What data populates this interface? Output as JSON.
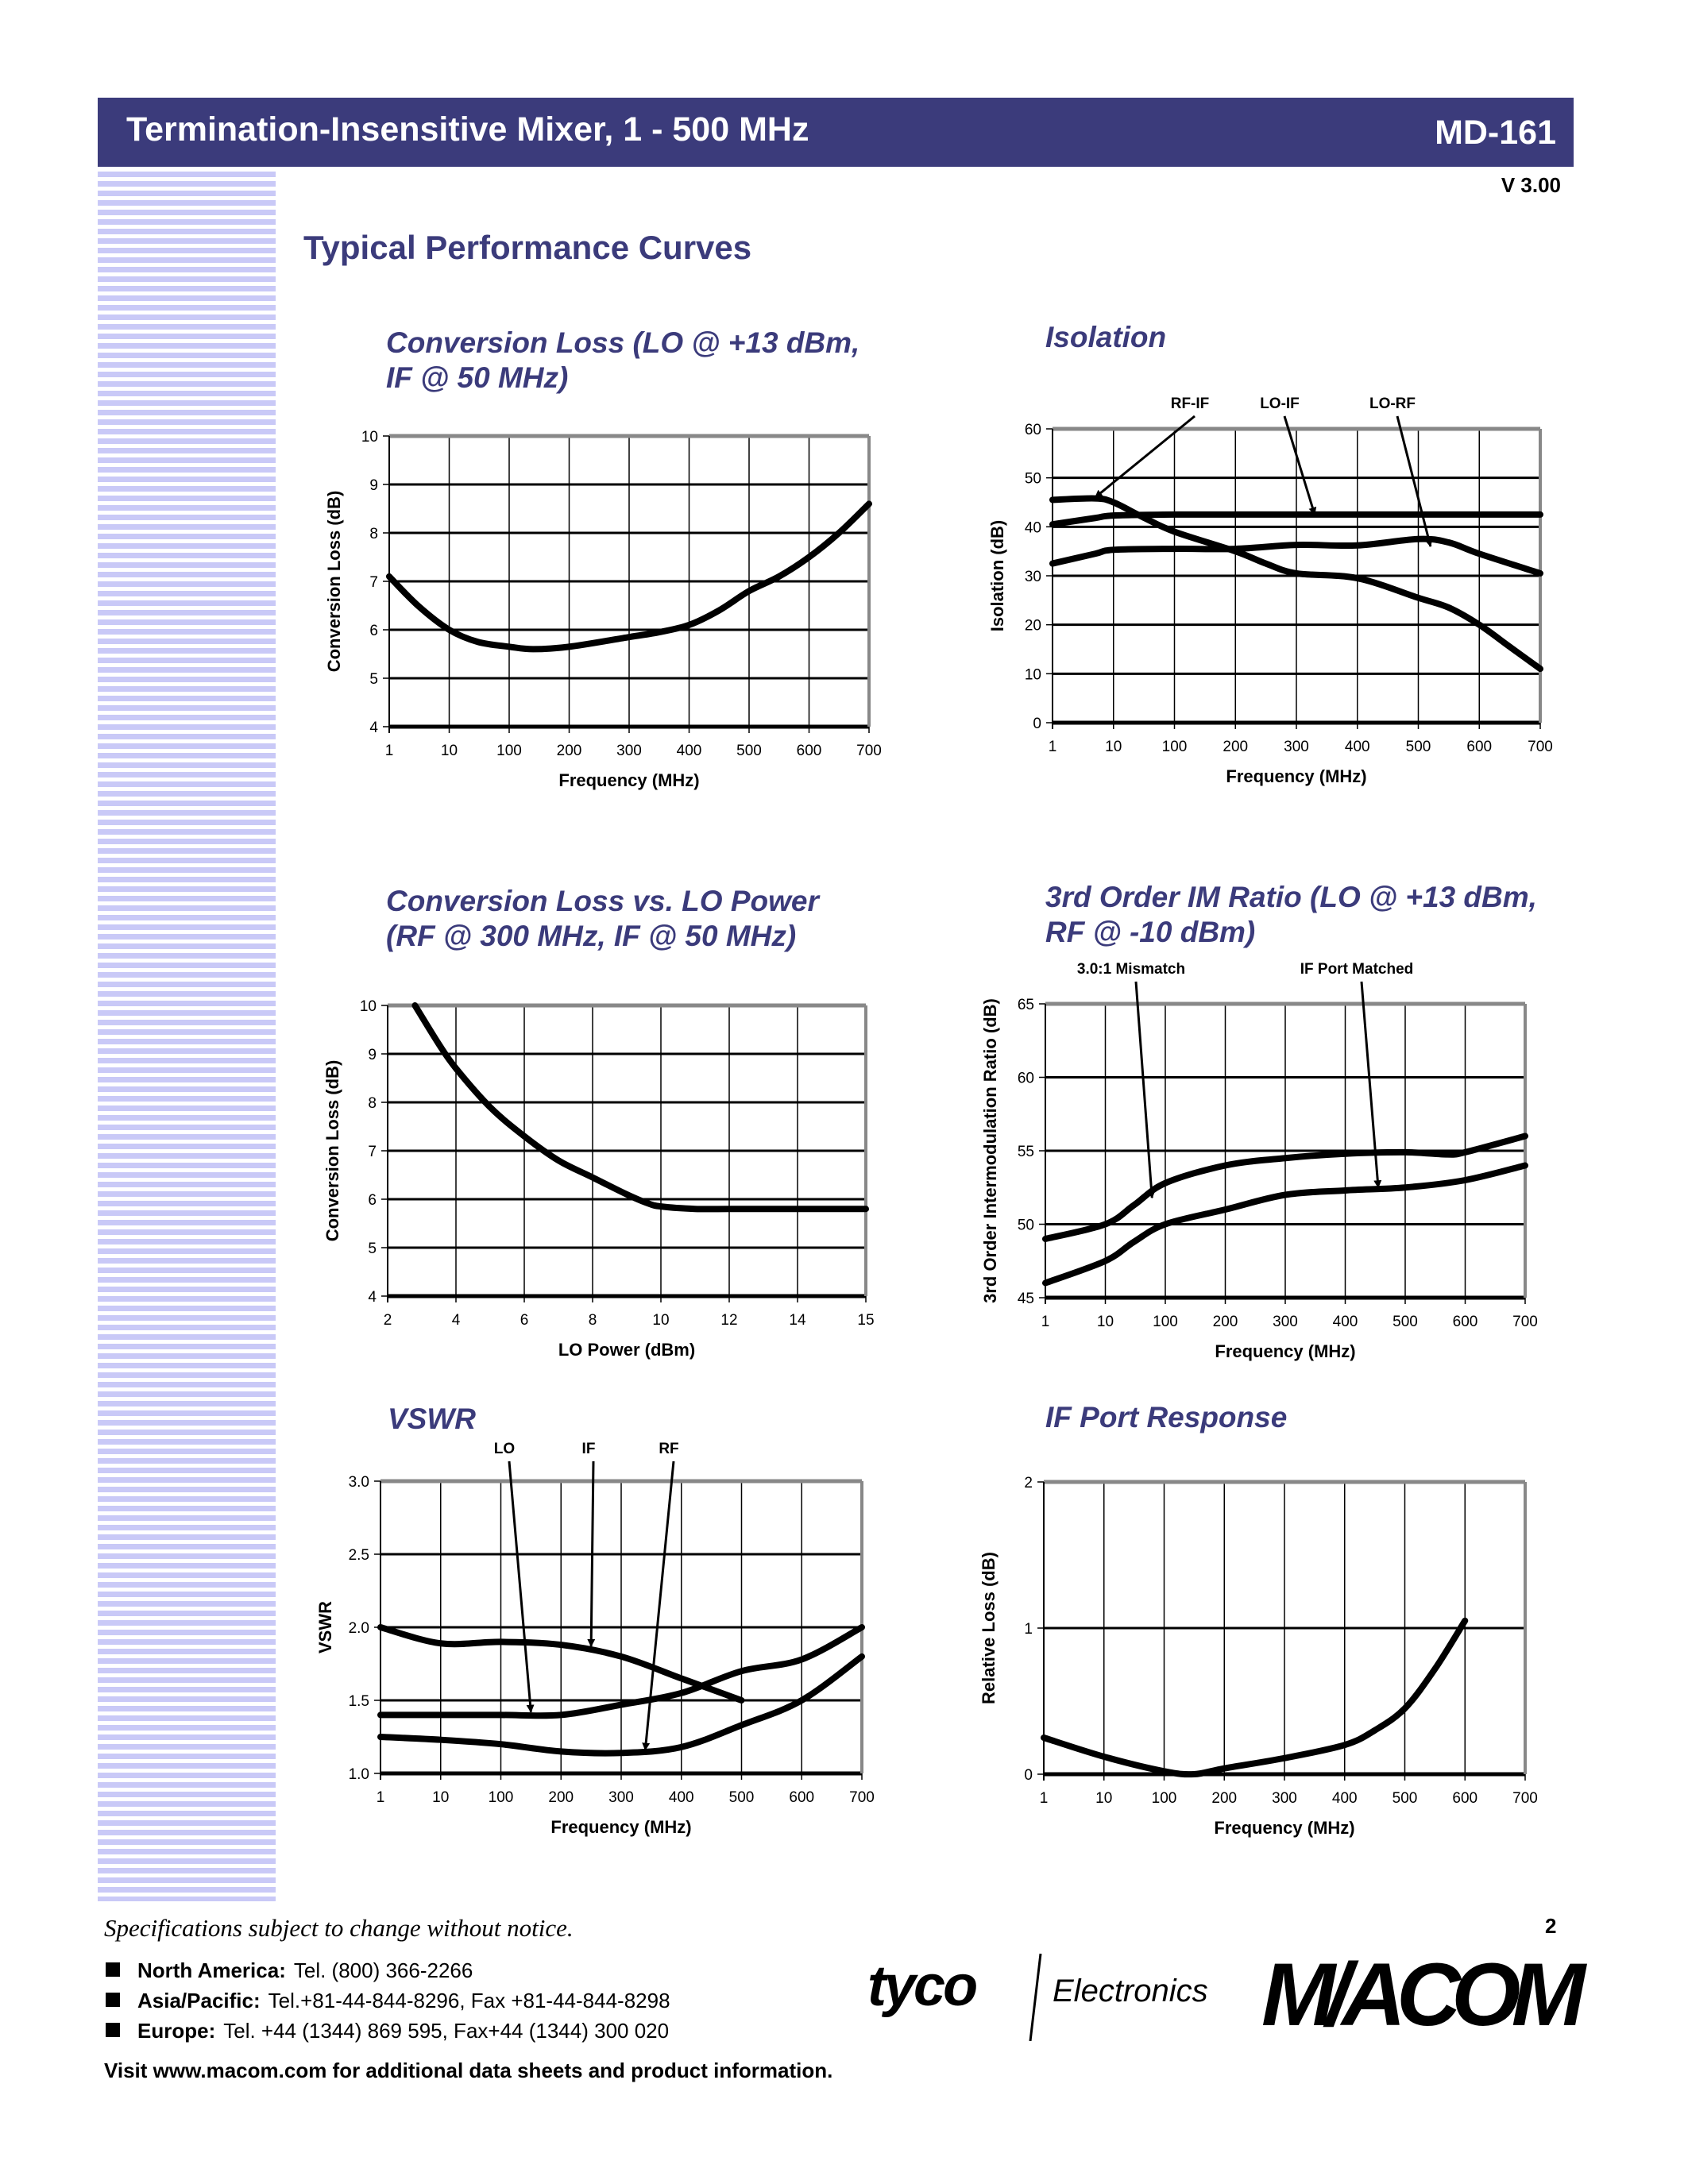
{
  "header": {
    "title": "Termination-Insensitive Mixer, 1 - 500 MHz",
    "part_number": "MD-161",
    "version": "V 3.00",
    "accent_color": "#3b3b7b"
  },
  "section_title": "Typical Performance Curves",
  "chart_titles": [
    [
      "Conversion Loss (LO @ +13 dBm,",
      "IF @ 50 MHz)"
    ],
    [
      "Isolation"
    ],
    [
      "Conversion Loss vs. LO Power",
      "(RF @ 300 MHz, IF @ 50 MHz)"
    ],
    [
      "3rd Order IM Ratio (LO @ +13 dBm,",
      "RF @ -10 dBm)"
    ],
    [
      "VSWR"
    ],
    [
      "IF Port Response"
    ]
  ],
  "chart_data": [
    {
      "type": "line",
      "xlabel": "Frequency (MHz)",
      "ylabel": "Conversion Loss (dB)",
      "x_ticks": [
        "1",
        "10",
        "100",
        "200",
        "300",
        "400",
        "500",
        "600",
        "700"
      ],
      "y_ticks": [
        "4",
        "5",
        "6",
        "7",
        "8",
        "9",
        "10"
      ],
      "ylim": [
        4,
        10
      ],
      "grid": true,
      "series": [
        {
          "points": [
            [
              1,
              7.1
            ],
            [
              3,
              6.5
            ],
            [
              10,
              6.0
            ],
            [
              30,
              5.75
            ],
            [
              100,
              5.65
            ],
            [
              140,
              5.6
            ],
            [
              200,
              5.65
            ],
            [
              300,
              5.85
            ],
            [
              350,
              5.95
            ],
            [
              400,
              6.1
            ],
            [
              450,
              6.4
            ],
            [
              500,
              6.8
            ],
            [
              550,
              7.1
            ],
            [
              600,
              7.5
            ],
            [
              650,
              8.0
            ],
            [
              700,
              8.6
            ]
          ]
        }
      ],
      "annotations": []
    },
    {
      "type": "line",
      "xlabel": "Frequency (MHz)",
      "ylabel": "Isolation (dB)",
      "x_ticks": [
        "1",
        "10",
        "100",
        "200",
        "300",
        "400",
        "500",
        "600",
        "700"
      ],
      "y_ticks": [
        "0",
        "10",
        "20",
        "30",
        "40",
        "50",
        "60"
      ],
      "ylim": [
        0,
        60
      ],
      "grid": true,
      "series": [
        {
          "name": "RF-IF",
          "points": [
            [
              1,
              45.5
            ],
            [
              5,
              45.8
            ],
            [
              10,
              45
            ],
            [
              30,
              42
            ],
            [
              100,
              39
            ],
            [
              200,
              35
            ],
            [
              250,
              32.5
            ],
            [
              300,
              30.5
            ],
            [
              400,
              29.5
            ],
            [
              500,
              25.5
            ],
            [
              550,
              23.5
            ],
            [
              600,
              20
            ],
            [
              650,
              15.5
            ],
            [
              700,
              11
            ]
          ]
        },
        {
          "name": "LO-IF",
          "points": [
            [
              1,
              40.5
            ],
            [
              5,
              41.8
            ],
            [
              10,
              42.3
            ],
            [
              100,
              42.5
            ],
            [
              200,
              42.5
            ],
            [
              400,
              42.5
            ],
            [
              700,
              42.5
            ]
          ]
        },
        {
          "name": "LO-RF",
          "points": [
            [
              1,
              32.5
            ],
            [
              5,
              34.5
            ],
            [
              10,
              35.3
            ],
            [
              100,
              35.5
            ],
            [
              200,
              35.5
            ],
            [
              300,
              36.3
            ],
            [
              400,
              36.2
            ],
            [
              500,
              37.5
            ],
            [
              550,
              36.8
            ],
            [
              600,
              34.5
            ],
            [
              700,
              30.5
            ]
          ]
        }
      ],
      "annotations": [
        {
          "label": "RF-IF",
          "target": [
            5,
            46
          ]
        },
        {
          "label": "LO-IF",
          "target": [
            330,
            42.5
          ]
        },
        {
          "label": "LO-RF",
          "target": [
            520,
            36
          ]
        }
      ]
    },
    {
      "type": "line",
      "xlabel": "LO Power (dBm)",
      "ylabel": "Conversion Loss (dB)",
      "x_ticks": [
        "2",
        "4",
        "6",
        "8",
        "10",
        "12",
        "14",
        "15"
      ],
      "y_ticks": [
        "4",
        "5",
        "6",
        "7",
        "8",
        "9",
        "10"
      ],
      "ylim": [
        4,
        10
      ],
      "grid": true,
      "series": [
        {
          "points": [
            [
              2.8,
              10
            ],
            [
              3.5,
              9.2
            ],
            [
              4,
              8.7
            ],
            [
              5,
              7.9
            ],
            [
              6,
              7.3
            ],
            [
              7,
              6.8
            ],
            [
              8,
              6.45
            ],
            [
              9,
              6.1
            ],
            [
              9.6,
              5.92
            ],
            [
              10,
              5.85
            ],
            [
              11,
              5.8
            ],
            [
              12,
              5.8
            ],
            [
              14,
              5.8
            ],
            [
              15,
              5.8
            ]
          ]
        }
      ],
      "annotations": []
    },
    {
      "type": "line",
      "xlabel": "Frequency (MHz)",
      "ylabel": "3rd Order Intermodulation Ratio (dB)",
      "x_ticks": [
        "1",
        "10",
        "100",
        "200",
        "300",
        "400",
        "500",
        "600",
        "700"
      ],
      "y_ticks": [
        "45",
        "50",
        "55",
        "60",
        "65"
      ],
      "ylim": [
        45,
        65
      ],
      "grid": true,
      "series": [
        {
          "points": [
            [
              1,
              49
            ],
            [
              10,
              50
            ],
            [
              30,
              51.3
            ],
            [
              100,
              52.8
            ],
            [
              200,
              54
            ],
            [
              300,
              54.5
            ],
            [
              400,
              54.8
            ],
            [
              500,
              54.9
            ],
            [
              570,
              54.75
            ],
            [
              600,
              54.9
            ],
            [
              700,
              56
            ]
          ]
        },
        {
          "points": [
            [
              1,
              46
            ],
            [
              10,
              47.5
            ],
            [
              30,
              48.8
            ],
            [
              100,
              50
            ],
            [
              200,
              51
            ],
            [
              300,
              52
            ],
            [
              400,
              52.3
            ],
            [
              500,
              52.5
            ],
            [
              600,
              53
            ],
            [
              700,
              54
            ]
          ]
        }
      ],
      "annotations": [
        {
          "label": "3.0:1 Mismatch",
          "target": [
            60,
            51.8
          ]
        },
        {
          "label": "IF Port Matched",
          "target": [
            455,
            52.5
          ]
        }
      ]
    },
    {
      "type": "line",
      "xlabel": "Frequency (MHz)",
      "ylabel": "VSWR",
      "x_ticks": [
        "1",
        "10",
        "100",
        "200",
        "300",
        "400",
        "500",
        "600",
        "700"
      ],
      "y_ticks": [
        "1.0",
        "1.5",
        "2.0",
        "2.5",
        "3.0"
      ],
      "ylim": [
        1.0,
        3.0
      ],
      "grid": true,
      "series": [
        {
          "name": "IF",
          "points": [
            [
              1,
              2.0
            ],
            [
              10,
              1.89
            ],
            [
              100,
              1.9
            ],
            [
              200,
              1.88
            ],
            [
              300,
              1.8
            ],
            [
              400,
              1.65
            ],
            [
              500,
              1.5
            ]
          ]
        },
        {
          "name": "LO",
          "points": [
            [
              1,
              1.4
            ],
            [
              10,
              1.4
            ],
            [
              100,
              1.4
            ],
            [
              200,
              1.4
            ],
            [
              300,
              1.47
            ],
            [
              400,
              1.55
            ],
            [
              500,
              1.7
            ],
            [
              600,
              1.78
            ],
            [
              700,
              2.0
            ]
          ]
        },
        {
          "name": "RF",
          "points": [
            [
              1,
              1.25
            ],
            [
              10,
              1.23
            ],
            [
              100,
              1.2
            ],
            [
              200,
              1.15
            ],
            [
              300,
              1.14
            ],
            [
              400,
              1.18
            ],
            [
              500,
              1.33
            ],
            [
              600,
              1.5
            ],
            [
              700,
              1.8
            ]
          ]
        }
      ],
      "annotations": [
        {
          "label": "LO",
          "target": [
            150,
            1.42
          ]
        },
        {
          "label": "IF",
          "target": [
            250,
            1.87
          ]
        },
        {
          "label": "RF",
          "target": [
            340,
            1.16
          ]
        }
      ]
    },
    {
      "type": "line",
      "xlabel": "Frequency (MHz)",
      "ylabel": "Relative Loss (dB)",
      "x_ticks": [
        "1",
        "10",
        "100",
        "200",
        "300",
        "400",
        "500",
        "600",
        "700"
      ],
      "y_ticks": [
        "0",
        "1",
        "2"
      ],
      "ylim": [
        0,
        2
      ],
      "grid": true,
      "series": [
        {
          "points": [
            [
              1,
              0.25
            ],
            [
              10,
              0.12
            ],
            [
              100,
              0.02
            ],
            [
              150,
              0.0
            ],
            [
              200,
              0.04
            ],
            [
              300,
              0.11
            ],
            [
              400,
              0.2
            ],
            [
              450,
              0.3
            ],
            [
              500,
              0.45
            ],
            [
              550,
              0.72
            ],
            [
              600,
              1.05
            ]
          ]
        }
      ],
      "annotations": []
    }
  ],
  "footer": {
    "disclaimer": "Specifications subject to change without notice.",
    "page_number": "2",
    "contacts": [
      {
        "region": "North America:",
        "details": "Tel. (800) 366-2266"
      },
      {
        "region": "Asia/Pacific:",
        "details": "Tel.+81-44-844-8296,  Fax +81-44-844-8298"
      },
      {
        "region": "Europe:",
        "details": "Tel. +44 (1344) 869 595,  Fax+44 (1344) 300 020"
      }
    ],
    "visit": "Visit www.macom.com for additional data sheets and product information.",
    "logos": {
      "tyco": "tyco",
      "tyco_sub": "Electronics",
      "macom": "M/A-COM"
    }
  }
}
